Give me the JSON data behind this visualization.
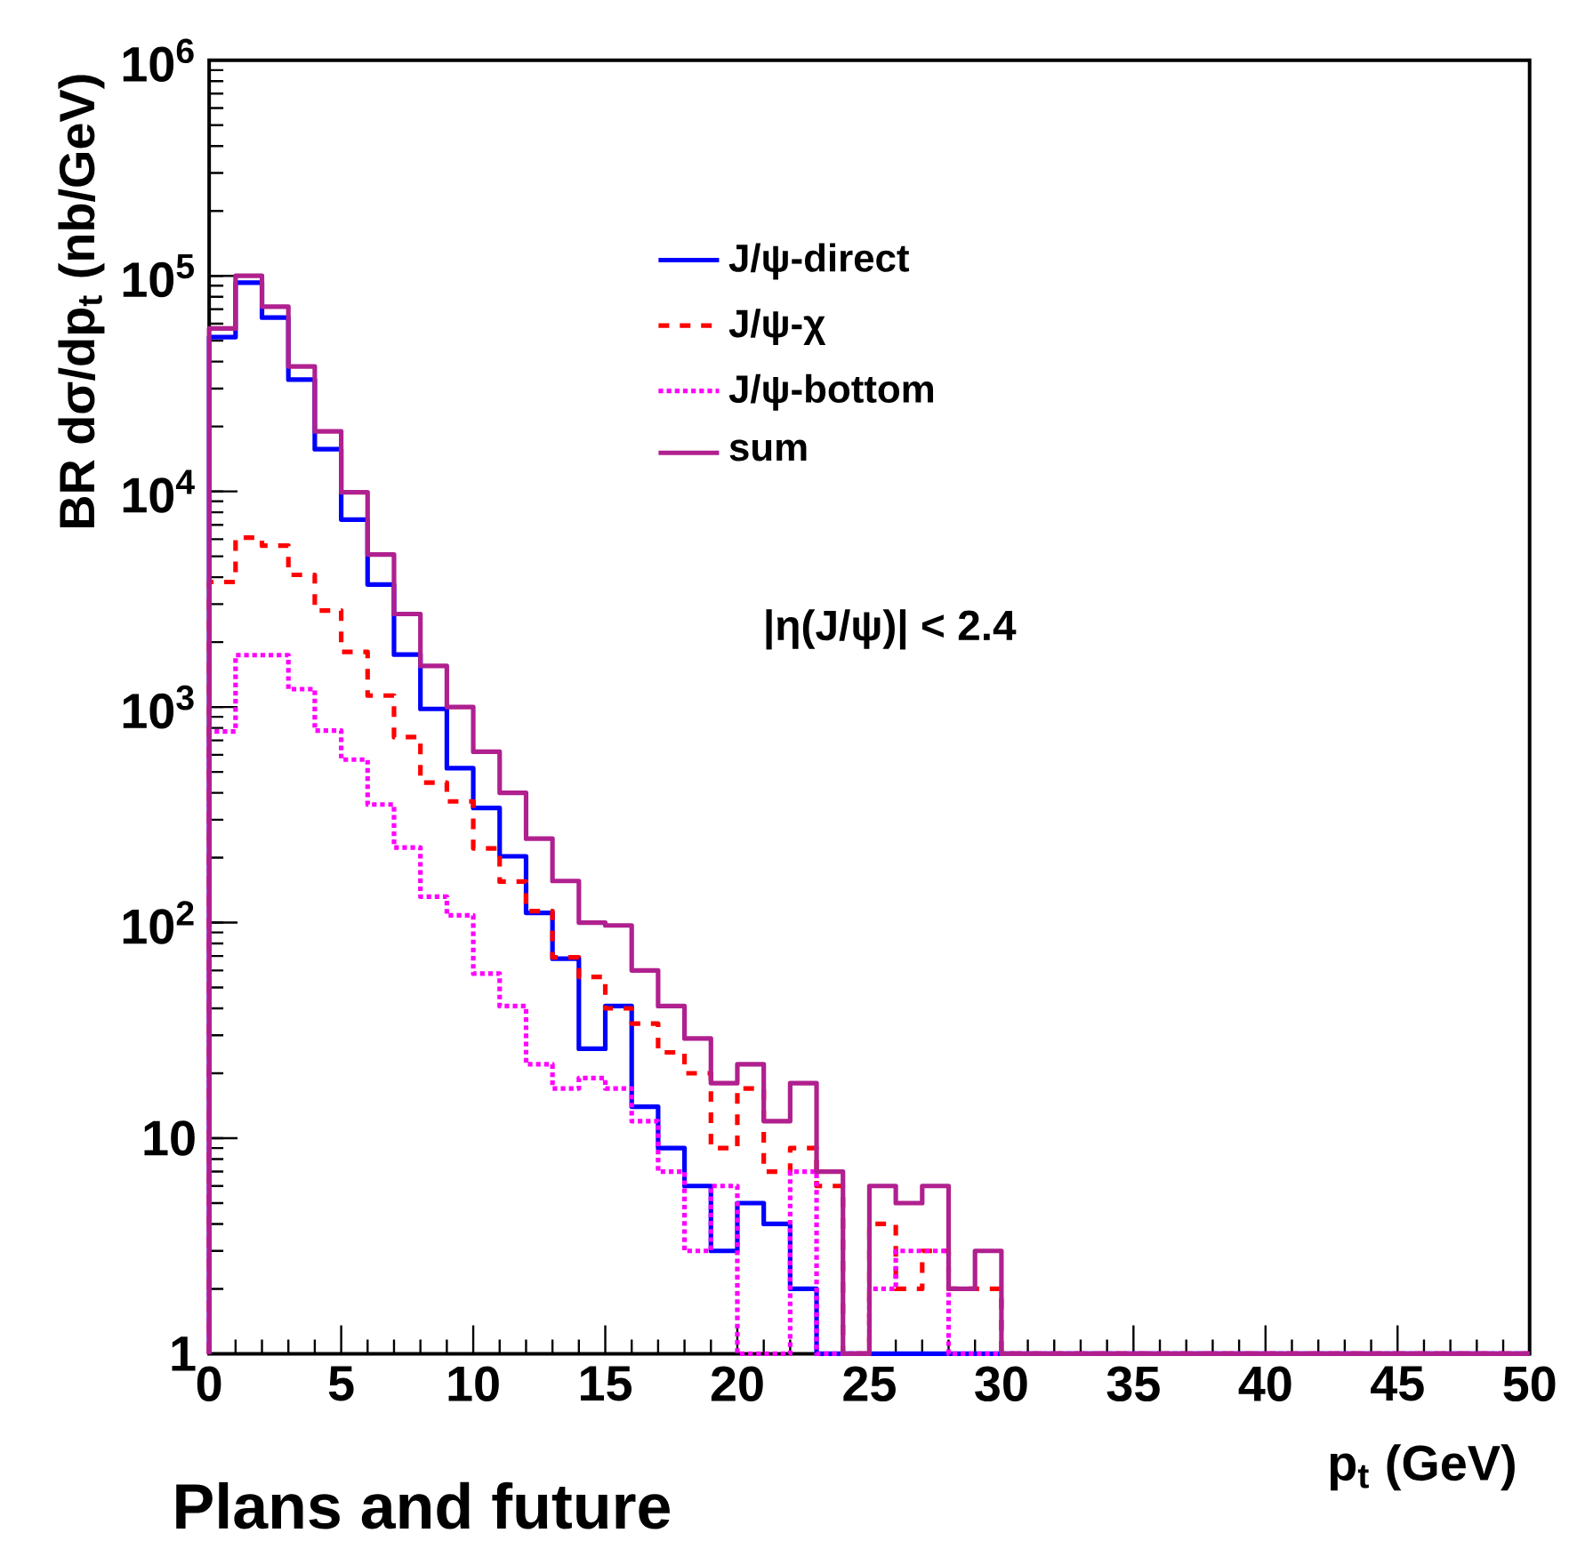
{
  "chart_data": {
    "type": "histogram",
    "xlabel": "p$_{t}$ (GeV)",
    "ylabel": "BR dσ/dp$_{t}$ (nb/GeV)",
    "bins": [
      0,
      1,
      2,
      3,
      4,
      5,
      6,
      7,
      8,
      9,
      10,
      11,
      12,
      13,
      14,
      15,
      16,
      17,
      18,
      19,
      20,
      21,
      22,
      23,
      24,
      25,
      26,
      27,
      28,
      29,
      30,
      31,
      32,
      33,
      34,
      35,
      36,
      37,
      38,
      39,
      40,
      41,
      42,
      43,
      44,
      45,
      46,
      47,
      48,
      49,
      50
    ],
    "series": [
      {
        "name": "J/ψ-direct",
        "color": "#0000ff",
        "line_style": "solid",
        "values": [
          52000,
          93000,
          64000,
          33000,
          15700,
          7400,
          3700,
          1750,
          980,
          520,
          340,
          203,
          111,
          68,
          26,
          41,
          14,
          9,
          6,
          3,
          5,
          4,
          2,
          null,
          null,
          null,
          null,
          null,
          null,
          null,
          null,
          null,
          null,
          null,
          null,
          null,
          null,
          null,
          null,
          null,
          null,
          null,
          null,
          null,
          null,
          null,
          null,
          null,
          null,
          null
        ]
      },
      {
        "name": "J/ψ-χ",
        "color": "#ff0000",
        "line_style": "dashed",
        "values": [
          3800,
          6100,
          5600,
          4100,
          2800,
          1800,
          1130,
          725,
          446,
          365,
          221,
          155,
          113,
          69,
          56,
          40,
          34,
          25,
          20,
          9,
          17,
          7,
          9,
          6,
          null,
          4,
          2,
          3,
          2,
          2,
          null,
          null,
          null,
          null,
          null,
          null,
          null,
          null,
          null,
          null,
          null,
          null,
          null,
          null,
          null,
          null,
          null,
          null,
          null,
          null
        ]
      },
      {
        "name": "J/ψ-bottom",
        "color": "#ff00ff",
        "line_style": "dotted",
        "values": [
          770,
          1740,
          1740,
          1210,
          777,
          570,
          353,
          223,
          132,
          108,
          58,
          41,
          22,
          17,
          19,
          17,
          12,
          7,
          3,
          6,
          null,
          null,
          7,
          null,
          null,
          2,
          3,
          3,
          null,
          null,
          null,
          null,
          null,
          null,
          null,
          null,
          null,
          null,
          null,
          null,
          null,
          null,
          null,
          null,
          null,
          null,
          null,
          null,
          null,
          null
        ]
      },
      {
        "name": "sum",
        "color": "#b0208f",
        "line_style": "solid",
        "values": [
          57000,
          100000,
          72000,
          38000,
          19000,
          9900,
          5100,
          2700,
          1550,
          1000,
          620,
          400,
          245,
          156,
          100,
          97,
          60,
          41,
          29,
          18,
          22,
          12,
          18,
          7,
          null,
          6,
          5,
          6,
          2,
          3,
          null,
          null,
          null,
          null,
          null,
          null,
          null,
          null,
          null,
          null,
          null,
          null,
          null,
          null,
          null,
          null,
          null,
          null,
          null,
          null
        ]
      }
    ],
    "xlim": [
      0,
      50
    ],
    "xticks": [
      0,
      5,
      10,
      15,
      20,
      25,
      30,
      35,
      40,
      45,
      50
    ],
    "ylim": [
      1,
      1000000
    ],
    "yticks": [
      1,
      10,
      {
        "value": 100,
        "label": "10$^{2}$"
      },
      {
        "value": 1000,
        "label": "10$^{3}$"
      },
      {
        "value": 10000,
        "label": "10$^{4}$"
      },
      {
        "value": 100000,
        "label": "10$^{5}$"
      },
      {
        "value": 1000000,
        "label": "10$^{6}$"
      }
    ],
    "log": "y",
    "legend": "top",
    "annotations": [
      "|η(J/ψ)| < 2.4",
      "Plans and future"
    ]
  }
}
